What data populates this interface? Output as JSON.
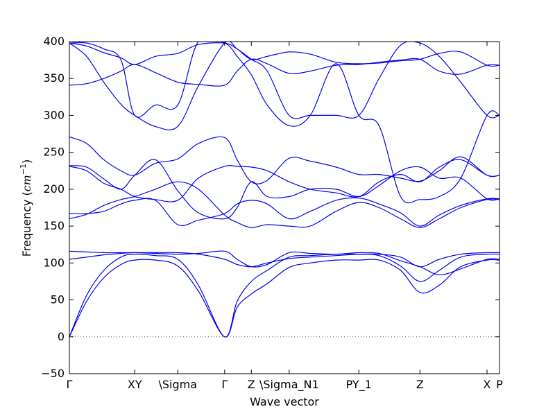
{
  "chart_data": {
    "type": "line",
    "xlabel": "Wave vector",
    "ylabel": "Frequency (",
    "ylabel_math": "cm",
    "ylabel_exp": "−1",
    "ylabel_close": ")",
    "ylim": [
      -50,
      400
    ],
    "yticks": [
      -50,
      0,
      50,
      100,
      150,
      200,
      250,
      300,
      350,
      400
    ],
    "xlim": [
      0,
      1
    ],
    "xticks": [
      {
        "x": 0.0,
        "label": "Γ"
      },
      {
        "x": 0.152,
        "label": "XY"
      },
      {
        "x": 0.252,
        "label": "\\Sigma"
      },
      {
        "x": 0.361,
        "label": "Γ"
      },
      {
        "x": 0.423,
        "label": "Z"
      },
      {
        "x": 0.511,
        "label": "\\Sigma_N1"
      },
      {
        "x": 0.673,
        "label": "PY_1"
      },
      {
        "x": 0.815,
        "label": "Z"
      },
      {
        "x": 0.971,
        "label": "X"
      },
      {
        "x": 1.0,
        "label": "P"
      }
    ],
    "zero_line": true,
    "line_color": "#0000ee",
    "series": [
      {
        "x": [
          0,
          0.04,
          0.08,
          0.12,
          0.152,
          0.2,
          0.252,
          0.3,
          0.361,
          0.39,
          0.423,
          0.46,
          0.511,
          0.56,
          0.62,
          0.673,
          0.72,
          0.77,
          0.815,
          0.86,
          0.91,
          0.971,
          1.0
        ],
        "y": [
          0,
          48,
          80,
          98,
          104,
          104,
          96,
          62,
          0,
          40,
          58,
          72,
          94,
          100,
          104,
          104,
          104,
          90,
          60,
          70,
          95,
          104,
          104
        ]
      },
      {
        "x": [
          0,
          0.04,
          0.08,
          0.12,
          0.152,
          0.2,
          0.252,
          0.3,
          0.361,
          0.39,
          0.423,
          0.46,
          0.511,
          0.56,
          0.62,
          0.673,
          0.72,
          0.77,
          0.815,
          0.86,
          0.91,
          0.971,
          1.0
        ],
        "y": [
          0,
          56,
          90,
          108,
          112,
          110,
          105,
          70,
          0,
          48,
          75,
          90,
          108,
          110,
          112,
          112,
          110,
          96,
          75,
          90,
          108,
          112,
          112
        ]
      },
      {
        "x": [
          0,
          0.04,
          0.08,
          0.12,
          0.152,
          0.2,
          0.252,
          0.3,
          0.361,
          0.39,
          0.423,
          0.46,
          0.511,
          0.56,
          0.62,
          0.673,
          0.72,
          0.77,
          0.815,
          0.86,
          0.91,
          0.971,
          1.0
        ],
        "y": [
          105,
          108,
          111,
          113,
          114,
          114,
          114,
          112,
          105,
          98,
          95,
          100,
          106,
          108,
          110,
          112,
          112,
          108,
          95,
          105,
          112,
          114,
          114
        ]
      },
      {
        "x": [
          0,
          0.04,
          0.08,
          0.12,
          0.152,
          0.2,
          0.252,
          0.3,
          0.361,
          0.39,
          0.423,
          0.46,
          0.511,
          0.56,
          0.62,
          0.673,
          0.72,
          0.77,
          0.815,
          0.86,
          0.91,
          0.971,
          1.0
        ],
        "y": [
          116,
          115,
          114,
          114,
          114,
          113,
          112,
          113,
          116,
          105,
          95,
          98,
          114,
          113,
          112,
          114,
          113,
          103,
          95,
          84,
          92,
          105,
          105
        ]
      },
      {
        "x": [
          0,
          0.04,
          0.08,
          0.12,
          0.152,
          0.2,
          0.252,
          0.3,
          0.361,
          0.39,
          0.423,
          0.46,
          0.511,
          0.56,
          0.62,
          0.673,
          0.72,
          0.77,
          0.815,
          0.86,
          0.91,
          0.971,
          1.0
        ],
        "y": [
          160,
          166,
          178,
          186,
          190,
          200,
          210,
          200,
          165,
          155,
          148,
          152,
          150,
          150,
          170,
          182,
          175,
          160,
          148,
          160,
          175,
          186,
          186
        ]
      },
      {
        "x": [
          0,
          0.04,
          0.08,
          0.12,
          0.152,
          0.2,
          0.252,
          0.3,
          0.361,
          0.39,
          0.423,
          0.46,
          0.511,
          0.56,
          0.62,
          0.673,
          0.72,
          0.77,
          0.815,
          0.86,
          0.91,
          0.971,
          1.0
        ],
        "y": [
          167,
          167,
          170,
          180,
          185,
          185,
          152,
          158,
          167,
          180,
          185,
          180,
          160,
          170,
          185,
          188,
          180,
          168,
          150,
          165,
          178,
          187,
          187
        ]
      },
      {
        "x": [
          0,
          0.04,
          0.08,
          0.12,
          0.152,
          0.2,
          0.252,
          0.3,
          0.361,
          0.39,
          0.423,
          0.46,
          0.511,
          0.56,
          0.62,
          0.673,
          0.72,
          0.77,
          0.815,
          0.86,
          0.91,
          0.971,
          1.0
        ],
        "y": [
          231,
          225,
          208,
          200,
          190,
          186,
          185,
          215,
          231,
          231,
          230,
          225,
          210,
          200,
          195,
          190,
          210,
          220,
          210,
          230,
          240,
          219,
          219
        ]
      },
      {
        "x": [
          0,
          0.04,
          0.08,
          0.12,
          0.152,
          0.2,
          0.252,
          0.3,
          0.361,
          0.39,
          0.423,
          0.46,
          0.511,
          0.56,
          0.62,
          0.673,
          0.72,
          0.77,
          0.815,
          0.86,
          0.91,
          0.971,
          1.0
        ],
        "y": [
          271,
          262,
          240,
          225,
          219,
          235,
          241,
          262,
          270,
          240,
          210,
          212,
          242,
          238,
          230,
          220,
          220,
          215,
          211,
          225,
          244,
          219,
          219
        ]
      },
      {
        "x": [
          0,
          0.04,
          0.08,
          0.12,
          0.152,
          0.2,
          0.252,
          0.3,
          0.361,
          0.39,
          0.423,
          0.46,
          0.511,
          0.56,
          0.62,
          0.673,
          0.72,
          0.77,
          0.815,
          0.86,
          0.91,
          0.971,
          1.0
        ],
        "y": [
          232,
          230,
          214,
          200,
          219,
          240,
          198,
          168,
          160,
          175,
          210,
          190,
          190,
          200,
          200,
          190,
          205,
          225,
          230,
          215,
          215,
          187,
          187
        ]
      },
      {
        "x": [
          0,
          0.04,
          0.08,
          0.12,
          0.152,
          0.2,
          0.252,
          0.3,
          0.361,
          0.39,
          0.423,
          0.46,
          0.511,
          0.56,
          0.62,
          0.673,
          0.72,
          0.77,
          0.815,
          0.86,
          0.91,
          0.971,
          1.0
        ],
        "y": [
          398,
          380,
          345,
          315,
          300,
          285,
          285,
          340,
          398,
          390,
          376,
          360,
          300,
          300,
          300,
          300,
          350,
          395,
          398,
          380,
          345,
          300,
          300
        ]
      },
      {
        "x": [
          0,
          0.04,
          0.08,
          0.12,
          0.152,
          0.2,
          0.252,
          0.3,
          0.361,
          0.39,
          0.423,
          0.46,
          0.511,
          0.56,
          0.62,
          0.673,
          0.72,
          0.77,
          0.815,
          0.86,
          0.91,
          0.971,
          1.0
        ],
        "y": [
          398,
          398,
          390,
          375,
          300,
          314,
          314,
          400,
          398,
          380,
          355,
          314,
          286,
          300,
          370,
          300,
          286,
          190,
          186,
          190,
          215,
          300,
          300
        ]
      },
      {
        "x": [
          0,
          0.04,
          0.08,
          0.12,
          0.152,
          0.2,
          0.252,
          0.3,
          0.361,
          0.39,
          0.423,
          0.46,
          0.511,
          0.56,
          0.62,
          0.673,
          0.72,
          0.77,
          0.815,
          0.86,
          0.91,
          0.971,
          1.0
        ],
        "y": [
          341,
          343,
          350,
          360,
          369,
          358,
          345,
          342,
          341,
          360,
          376,
          370,
          357,
          360,
          368,
          369,
          372,
          375,
          376,
          360,
          356,
          368,
          368
        ]
      },
      {
        "x": [
          0,
          0.04,
          0.08,
          0.12,
          0.152,
          0.2,
          0.252,
          0.3,
          0.361,
          0.39,
          0.423,
          0.46,
          0.511,
          0.56,
          0.62,
          0.673,
          0.72,
          0.77,
          0.815,
          0.86,
          0.91,
          0.971,
          1.0
        ],
        "y": [
          398,
          394,
          385,
          378,
          369,
          380,
          384,
          396,
          398,
          390,
          376,
          380,
          386,
          383,
          372,
          370,
          371,
          374,
          376,
          384,
          386,
          368,
          368
        ]
      }
    ]
  }
}
